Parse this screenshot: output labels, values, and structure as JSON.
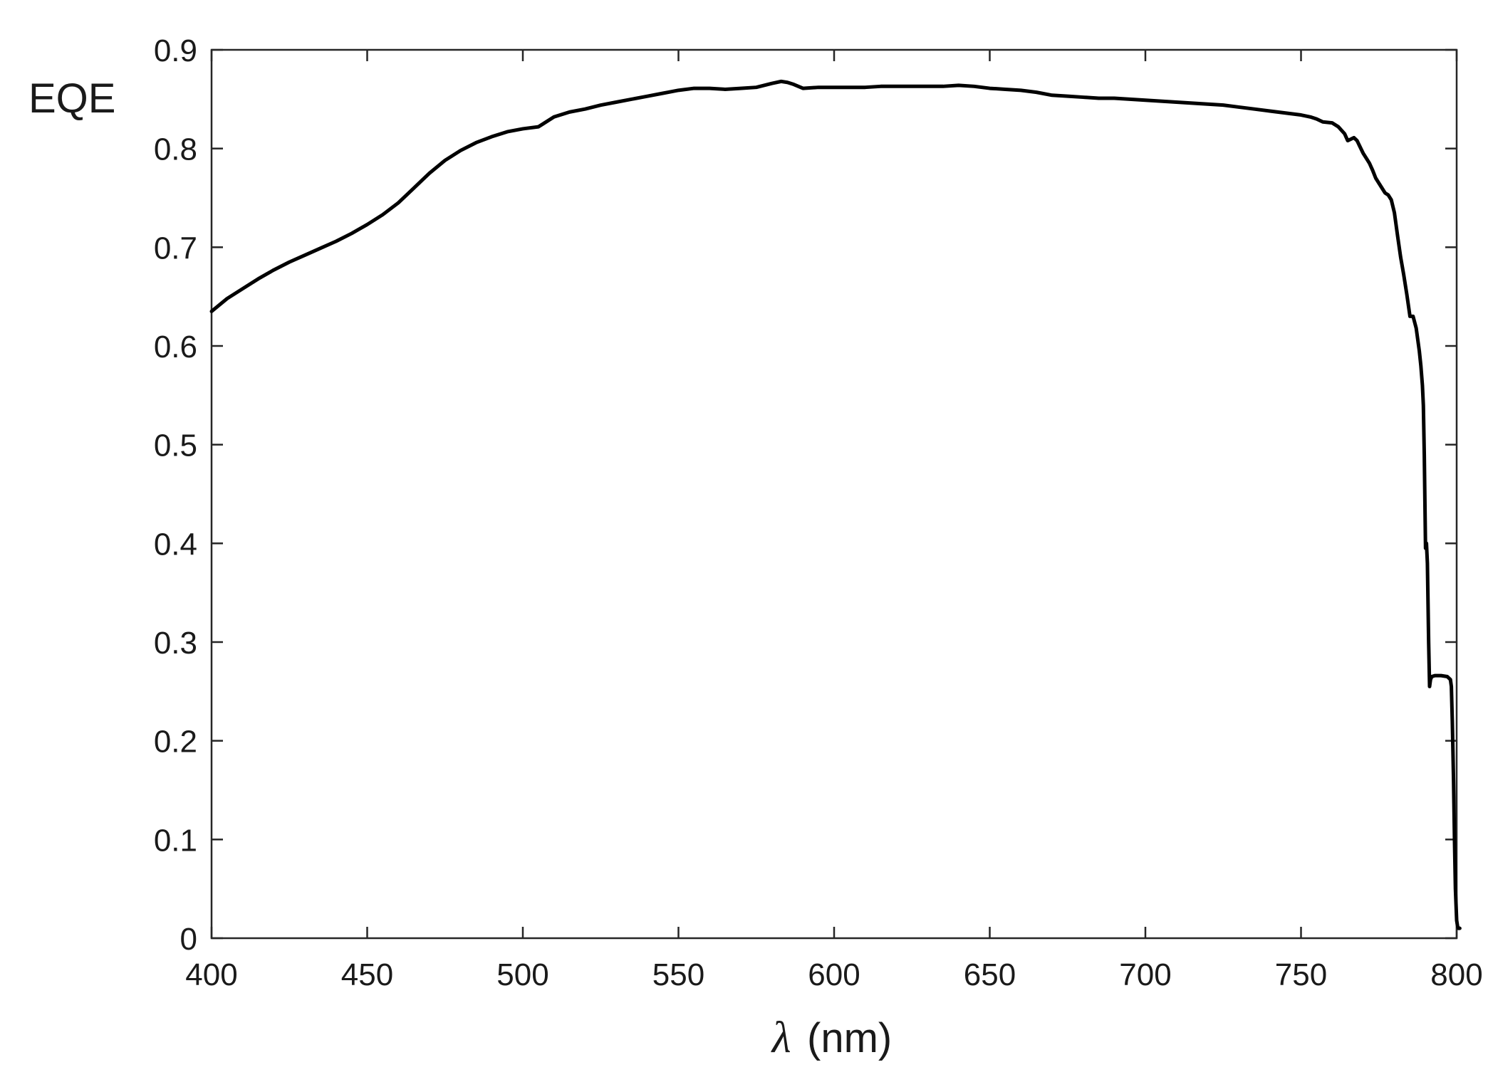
{
  "chart_data": {
    "type": "line",
    "title": "",
    "xlabel_symbol": "λ",
    "xlabel_unit": "(nm)",
    "ylabel": "EQE",
    "xlim": [
      400,
      800
    ],
    "ylim": [
      0,
      0.9
    ],
    "xticks": [
      "400",
      "450",
      "500",
      "550",
      "600",
      "650",
      "700",
      "750",
      "800"
    ],
    "yticks": [
      "0",
      "0.1",
      "0.2",
      "0.3",
      "0.4",
      "0.5",
      "0.6",
      "0.7",
      "0.8",
      "0.9"
    ],
    "grid": false,
    "line_color": "#000000",
    "series": [
      {
        "x": [
          400,
          405,
          410,
          415,
          420,
          425,
          430,
          435,
          440,
          445,
          450,
          455,
          460,
          465,
          470,
          475,
          480,
          485,
          490,
          495,
          500,
          505,
          510,
          515,
          520,
          525,
          530,
          535,
          540,
          545,
          550,
          555,
          560,
          565,
          570,
          575,
          580,
          583,
          585,
          587,
          590,
          595,
          600,
          605,
          610,
          615,
          620,
          625,
          630,
          635,
          640,
          645,
          650,
          655,
          660,
          665,
          670,
          675,
          680,
          685,
          690,
          695,
          700,
          705,
          710,
          715,
          720,
          725,
          730,
          735,
          740,
          745,
          750,
          753,
          755,
          757,
          760,
          762,
          764,
          765,
          767,
          768,
          770,
          772,
          773,
          774,
          776,
          777,
          778,
          779,
          780,
          781,
          782,
          783,
          784,
          785,
          786,
          787,
          788,
          788.5,
          789,
          789.3,
          789.6,
          790,
          790.3,
          790.6,
          791,
          791.3,
          791.6,
          792,
          793,
          795,
          797,
          798,
          798.3,
          798.6,
          799,
          799.3,
          799.6,
          800,
          800.3,
          800.6,
          801
        ],
        "y": [
          0.635,
          0.648,
          0.658,
          0.668,
          0.677,
          0.685,
          0.692,
          0.699,
          0.706,
          0.714,
          0.723,
          0.733,
          0.745,
          0.76,
          0.775,
          0.788,
          0.798,
          0.806,
          0.812,
          0.817,
          0.82,
          0.822,
          0.832,
          0.837,
          0.84,
          0.844,
          0.847,
          0.85,
          0.853,
          0.856,
          0.859,
          0.861,
          0.861,
          0.86,
          0.861,
          0.862,
          0.866,
          0.868,
          0.867,
          0.865,
          0.861,
          0.862,
          0.862,
          0.862,
          0.862,
          0.863,
          0.863,
          0.863,
          0.863,
          0.863,
          0.864,
          0.863,
          0.861,
          0.86,
          0.859,
          0.857,
          0.854,
          0.853,
          0.852,
          0.851,
          0.851,
          0.85,
          0.849,
          0.848,
          0.847,
          0.846,
          0.845,
          0.844,
          0.842,
          0.84,
          0.838,
          0.836,
          0.834,
          0.832,
          0.83,
          0.827,
          0.826,
          0.822,
          0.815,
          0.808,
          0.811,
          0.808,
          0.795,
          0.785,
          0.778,
          0.77,
          0.76,
          0.755,
          0.753,
          0.748,
          0.735,
          0.712,
          0.69,
          0.672,
          0.652,
          0.63,
          0.63,
          0.618,
          0.595,
          0.58,
          0.56,
          0.54,
          0.49,
          0.395,
          0.4,
          0.38,
          0.3,
          0.255,
          0.262,
          0.265,
          0.266,
          0.266,
          0.265,
          0.262,
          0.255,
          0.22,
          0.16,
          0.1,
          0.05,
          0.018,
          0.012,
          0.01,
          0.01
        ]
      }
    ]
  }
}
